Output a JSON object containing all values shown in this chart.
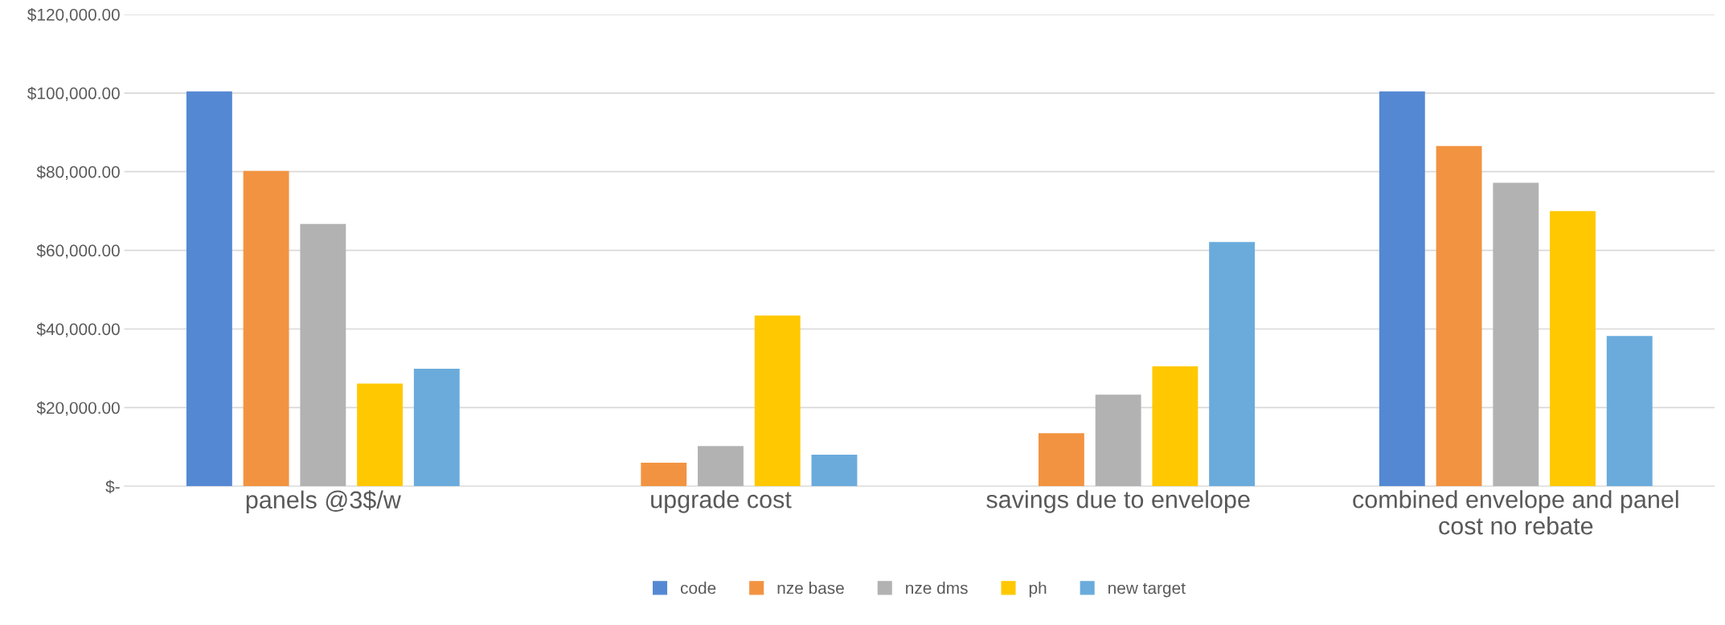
{
  "chart_data": {
    "type": "bar",
    "categories": [
      "panels @3$/w",
      "upgrade cost",
      "savings due to envelope",
      "combined envelope and panel\ncost no rebate"
    ],
    "series": [
      {
        "name": "code",
        "color": "#5588d3",
        "values": [
          100400,
          0,
          0,
          100400
        ]
      },
      {
        "name": "nze base",
        "color": "#f29341",
        "values": [
          80200,
          6000,
          13500,
          86500
        ]
      },
      {
        "name": "nze dms",
        "color": "#b2b2b2",
        "values": [
          66700,
          10200,
          23300,
          77200
        ]
      },
      {
        "name": "ph",
        "color": "#ffc800",
        "values": [
          26100,
          43400,
          30500,
          70000
        ]
      },
      {
        "name": "new target",
        "color": "#6aabdc",
        "values": [
          29900,
          8000,
          62100,
          38200
        ]
      }
    ],
    "ylim": [
      0,
      120000
    ],
    "yticks": [
      {
        "value": 0,
        "label": "$-"
      },
      {
        "value": 20000,
        "label": "$20,000.00"
      },
      {
        "value": 40000,
        "label": "$40,000.00"
      },
      {
        "value": 60000,
        "label": "$60,000.00"
      },
      {
        "value": 80000,
        "label": "$80,000.00"
      },
      {
        "value": 100000,
        "label": "$100,000.00"
      },
      {
        "value": 120000,
        "label": "$120,000.00"
      }
    ],
    "grid": "y",
    "legend": "bottom"
  }
}
